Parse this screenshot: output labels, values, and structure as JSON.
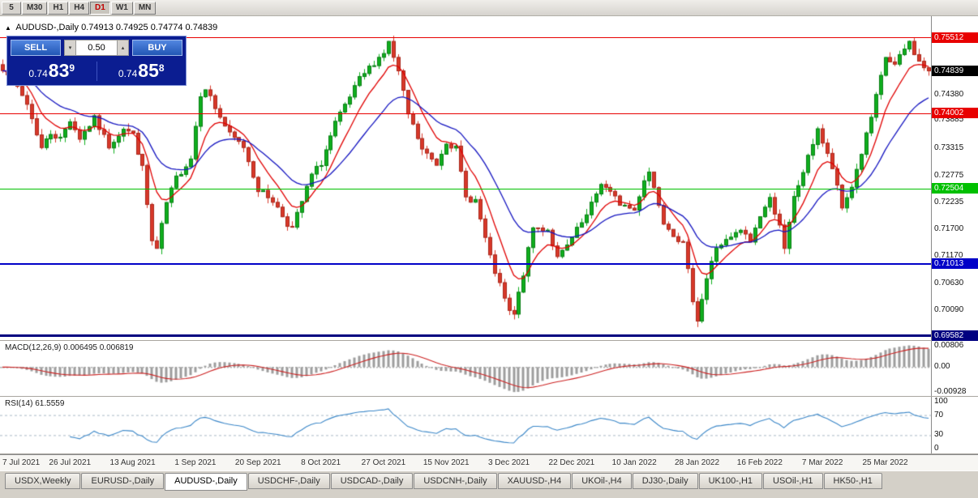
{
  "toolbar": {
    "timeframes": [
      "5",
      "M30",
      "H1",
      "H4",
      "D1",
      "W1",
      "MN"
    ],
    "active": "D1"
  },
  "chart": {
    "title": "AUDUSD-,Daily",
    "ohlc_text": "0.74913 0.74925 0.74774 0.74839",
    "current_price_label": "0.74839",
    "price_axis_ticks": [
      "0.74380",
      "0.73885",
      "0.73315",
      "0.72775",
      "0.72235",
      "0.71700",
      "0.71170",
      "0.70630",
      "0.70090"
    ]
  },
  "trade_panel": {
    "sell_label": "SELL",
    "buy_label": "BUY",
    "volume": "0.50",
    "sell_price": {
      "prefix": "0.74",
      "main": "83",
      "pip": "9"
    },
    "buy_price": {
      "prefix": "0.74",
      "main": "85",
      "pip": "8"
    }
  },
  "macd": {
    "label": "MACD(12,26,9) 0.006495 0.006819",
    "axis": [
      {
        "label": "0.00806",
        "value": 0.00806
      },
      {
        "label": "0.00",
        "value": 0
      },
      {
        "label": "-0.00928",
        "value": -0.00928
      }
    ],
    "range": {
      "top": 0.0085,
      "bottom": -0.0095
    },
    "params": {
      "fast": 12,
      "slow": 26,
      "signal": 9
    }
  },
  "rsi": {
    "label": "RSI(14) 61.5559",
    "axis": [
      {
        "label": "100",
        "value": 100
      },
      {
        "label": "70",
        "value": 70
      },
      {
        "label": "30",
        "value": 30
      },
      {
        "label": "0",
        "value": 0
      }
    ],
    "levels": [
      70,
      30
    ],
    "period": 14
  },
  "time_axis": {
    "labels": [
      "7 Jul 2021",
      "26 Jul 2021",
      "13 Aug 2021",
      "1 Sep 2021",
      "20 Sep 2021",
      "8 Oct 2021",
      "27 Oct 2021",
      "15 Nov 2021",
      "3 Dec 2021",
      "22 Dec 2021",
      "10 Jan 2022",
      "28 Jan 2022",
      "16 Feb 2022",
      "7 Mar 2022",
      "25 Mar 2022"
    ],
    "indices": [
      1,
      14,
      27,
      40,
      53,
      66,
      79,
      92,
      105,
      118,
      131,
      144,
      157,
      170,
      183
    ]
  },
  "tabs": {
    "active": "AUDUSD-,Daily",
    "items": [
      "USDX,Weekly",
      "EURUSD-,Daily",
      "AUDUSD-,Daily",
      "USDCHF-,Daily",
      "USDCAD-,Daily",
      "USDCNH-,Daily",
      "XAUUSD-,H4",
      "UKOil-,H4",
      "DJ30-,Daily",
      "UK100-,H1",
      "USOil-,H1",
      "HK50-,H1"
    ]
  },
  "chart_data": {
    "type": "candlestick",
    "symbol": "AUDUSD-",
    "timeframe": "Daily",
    "candle_count": 193,
    "price_range": {
      "top": 0.7594,
      "bottom": 0.695
    },
    "current_price": 0.74839,
    "close_anchors": [
      [
        0,
        0.7492
      ],
      [
        1,
        0.7483
      ],
      [
        3,
        0.7452
      ],
      [
        5,
        0.742
      ],
      [
        8,
        0.7332
      ],
      [
        10,
        0.7362
      ],
      [
        12,
        0.735
      ],
      [
        14,
        0.7388
      ],
      [
        16,
        0.7352
      ],
      [
        19,
        0.739
      ],
      [
        22,
        0.7336
      ],
      [
        25,
        0.7372
      ],
      [
        27,
        0.7358
      ],
      [
        29,
        0.7292
      ],
      [
        31,
        0.7146
      ],
      [
        32,
        0.713
      ],
      [
        34,
        0.7222
      ],
      [
        36,
        0.7272
      ],
      [
        39,
        0.7312
      ],
      [
        41,
        0.744
      ],
      [
        42,
        0.7453
      ],
      [
        44,
        0.7412
      ],
      [
        47,
        0.7358
      ],
      [
        50,
        0.7335
      ],
      [
        53,
        0.725
      ],
      [
        56,
        0.7228
      ],
      [
        59,
        0.7182
      ],
      [
        60,
        0.7172
      ],
      [
        62,
        0.7225
      ],
      [
        64,
        0.7278
      ],
      [
        66,
        0.7302
      ],
      [
        69,
        0.738
      ],
      [
        72,
        0.7432
      ],
      [
        74,
        0.7468
      ],
      [
        77,
        0.7502
      ],
      [
        79,
        0.7522
      ],
      [
        80,
        0.7541
      ],
      [
        82,
        0.7482
      ],
      [
        84,
        0.7399
      ],
      [
        87,
        0.7328
      ],
      [
        90,
        0.73
      ],
      [
        92,
        0.7346
      ],
      [
        94,
        0.733
      ],
      [
        96,
        0.7233
      ],
      [
        98,
        0.7228
      ],
      [
        101,
        0.7113
      ],
      [
        103,
        0.7058
      ],
      [
        105,
        0.7005
      ],
      [
        106,
        0.7
      ],
      [
        108,
        0.7082
      ],
      [
        110,
        0.7173
      ],
      [
        113,
        0.717
      ],
      [
        115,
        0.7112
      ],
      [
        117,
        0.7136
      ],
      [
        119,
        0.7168
      ],
      [
        121,
        0.7196
      ],
      [
        124,
        0.7263
      ],
      [
        126,
        0.7242
      ],
      [
        128,
        0.7222
      ],
      [
        131,
        0.7208
      ],
      [
        133,
        0.727
      ],
      [
        134,
        0.7285
      ],
      [
        136,
        0.7222
      ],
      [
        137,
        0.7187
      ],
      [
        139,
        0.7162
      ],
      [
        141,
        0.714
      ],
      [
        143,
        0.7032
      ],
      [
        144,
        0.6992
      ],
      [
        146,
        0.7072
      ],
      [
        148,
        0.7135
      ],
      [
        151,
        0.7152
      ],
      [
        153,
        0.7168
      ],
      [
        155,
        0.7146
      ],
      [
        157,
        0.7198
      ],
      [
        159,
        0.723
      ],
      [
        161,
        0.7182
      ],
      [
        162,
        0.7128
      ],
      [
        164,
        0.7232
      ],
      [
        165,
        0.7258
      ],
      [
        167,
        0.7312
      ],
      [
        169,
        0.7372
      ],
      [
        170,
        0.7342
      ],
      [
        172,
        0.7292
      ],
      [
        174,
        0.7212
      ],
      [
        176,
        0.7256
      ],
      [
        178,
        0.7322
      ],
      [
        180,
        0.7392
      ],
      [
        182,
        0.7472
      ],
      [
        183,
        0.7512
      ],
      [
        185,
        0.7496
      ],
      [
        187,
        0.7528
      ],
      [
        188,
        0.7542
      ],
      [
        190,
        0.7502
      ],
      [
        192,
        0.74839
      ]
    ],
    "hlines": [
      {
        "price": 0.75512,
        "label": "0.75512",
        "color": "#e80000",
        "width": 1
      },
      {
        "price": 0.74002,
        "label": "0.74002",
        "color": "#e80000",
        "width": 1
      },
      {
        "price": 0.72504,
        "label": "0.72504",
        "color": "#00c000",
        "width": 1
      },
      {
        "price": 0.71013,
        "label": "0.71013",
        "color": "#0000c8",
        "width": 2
      },
      {
        "price": 0.69582,
        "label": "0.69582",
        "color": "#000080",
        "width": 3
      }
    ],
    "overlays": [
      {
        "name": "ma-fast",
        "period": 8,
        "color": "#e00000"
      },
      {
        "name": "ma-slow",
        "period": 21,
        "color": "#1515c0"
      }
    ],
    "colors": {
      "up": "#0faf1e",
      "down": "#d8382a",
      "up_edge": "#0a7d15",
      "down_edge": "#a8281c",
      "macd_hist": "#9d9d9d",
      "macd_signal": "#cc2222",
      "rsi_line": "#3b87c8"
    }
  }
}
